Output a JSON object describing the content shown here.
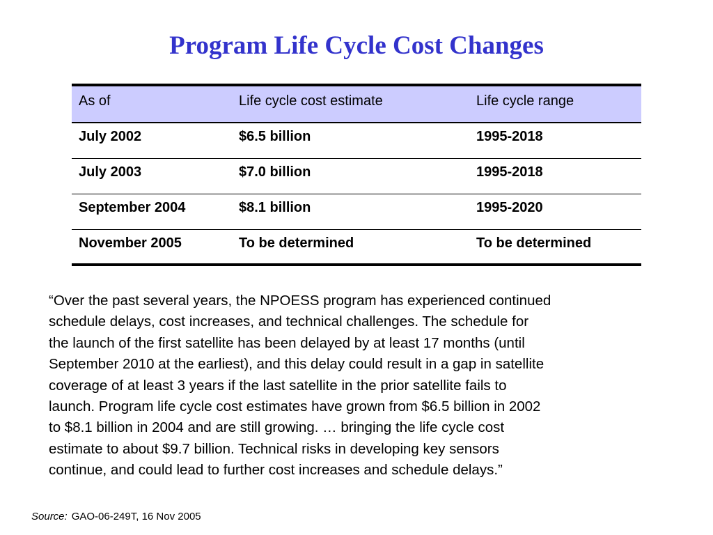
{
  "title": "Program Life Cycle Cost Changes",
  "table": {
    "headers": [
      "As of",
      "Life cycle cost estimate",
      "Life cycle range"
    ],
    "rows": [
      [
        "July 2002",
        "$6.5 billion",
        "1995-2018"
      ],
      [
        "July 2003",
        "$7.0 billion",
        "1995-2018"
      ],
      [
        "September 2004",
        "$8.1 billion",
        "1995-2020"
      ],
      [
        "November 2005",
        "To be determined",
        "To be determined"
      ]
    ],
    "header_bg": "#ccccff"
  },
  "quote_lines": [
    "“Over the past several years, the NPOESS program has experienced continued",
    "schedule delays, cost increases, and technical challenges.  The schedule for",
    "the launch of the first satellite has been delayed by at least 17 months (until",
    "September 2010 at the earliest), and this delay could result in a gap in satellite",
    "coverage of at least 3 years if the last satellite in the prior satellite fails to",
    "launch.  Program life cycle cost estimates have grown from $6.5 billion in 2002",
    "to $8.1 billion in 2004 and are still growing. … bringing the life cycle cost",
    "estimate to about $9.7 billion.  Technical risks in developing key sensors",
    "continue, and could lead to further cost increases and schedule delays.”"
  ],
  "source": {
    "label": "Source:",
    "text": "GAO-06-249T, 16 Nov 2005"
  },
  "colors": {
    "title": "#3333cc"
  }
}
